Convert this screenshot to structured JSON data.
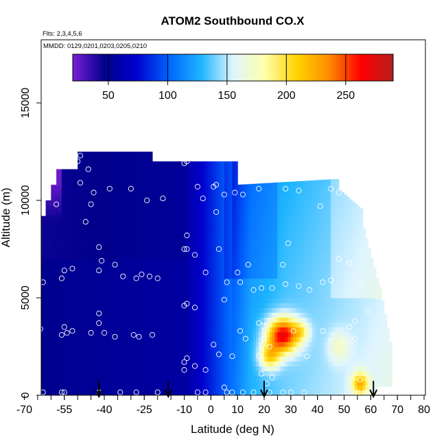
{
  "chart_data": {
    "type": "heatmap",
    "title": "ATOM2 Southbound CO.X",
    "flights_label": "Flts: 2,3,4,5,6",
    "dates_label": "MMDD: 0129,0201,0203,0205,0210",
    "xlabel": "Latitude (deg N)",
    "ylabel": "Altitude (m)",
    "xlim": [
      -70,
      80
    ],
    "ylim": [
      0,
      17800
    ],
    "x_ticks": [
      -70,
      -55,
      -40,
      -25,
      -10,
      0,
      10,
      20,
      30,
      40,
      50,
      60,
      70,
      80
    ],
    "x_tick_labels": [
      "-70",
      "-55",
      "-40",
      "-25",
      "-10",
      "0",
      "10",
      "20",
      "30",
      "40",
      "50",
      "60",
      "70",
      "80"
    ],
    "y_ticks": [
      0,
      5000,
      10000,
      15000
    ],
    "y_tick_labels": [
      "0",
      "5000",
      "10000",
      "15000"
    ],
    "colorbar": {
      "range": [
        20,
        290
      ],
      "ticks": [
        50,
        100,
        150,
        200,
        250
      ],
      "tick_labels": [
        "50",
        "100",
        "150",
        "200",
        "250"
      ],
      "colors": [
        "#7a1fd6",
        "#00008b",
        "#0000cd",
        "#0064ff",
        "#1eb4ff",
        "#dff5ff",
        "#ffffaa",
        "#ffd200",
        "#ff8c00",
        "#ff0000",
        "#b41e1e"
      ]
    },
    "sample_points": [
      [
        -63,
        5800
      ],
      [
        -64,
        3400
      ],
      [
        -63,
        150
      ],
      [
        -58,
        9800
      ],
      [
        -56,
        6000
      ],
      [
        -55,
        6400
      ],
      [
        -52,
        6500
      ],
      [
        -55,
        3500
      ],
      [
        -54,
        3200
      ],
      [
        -56,
        3100
      ],
      [
        -52,
        3300
      ],
      [
        -55,
        150
      ],
      [
        -56,
        150
      ],
      [
        -50,
        12000
      ],
      [
        -49,
        12300
      ],
      [
        -46,
        11600
      ],
      [
        -44,
        10400
      ],
      [
        -45,
        9800
      ],
      [
        -49,
        10900
      ],
      [
        -47,
        8900
      ],
      [
        -42,
        7600
      ],
      [
        -41,
        6900
      ],
      [
        -42,
        6400
      ],
      [
        -36,
        6700
      ],
      [
        -33,
        6100
      ],
      [
        -28,
        6000
      ],
      [
        -26,
        6200
      ],
      [
        -23,
        6100
      ],
      [
        -20,
        6000
      ],
      [
        -42,
        4200
      ],
      [
        -42,
        3700
      ],
      [
        -45,
        3200
      ],
      [
        -40,
        3200
      ],
      [
        -36,
        3000
      ],
      [
        -29,
        3100
      ],
      [
        -27,
        3000
      ],
      [
        -22,
        3100
      ],
      [
        -42,
        150
      ],
      [
        -34,
        150
      ],
      [
        -28,
        150
      ],
      [
        -20,
        150
      ],
      [
        -38,
        10600
      ],
      [
        -30,
        10600
      ],
      [
        -24,
        10000
      ],
      [
        -18,
        10100
      ],
      [
        -9,
        12000
      ],
      [
        -10,
        11900
      ],
      [
        -5,
        10700
      ],
      [
        -3,
        10100
      ],
      [
        1,
        10700
      ],
      [
        2,
        10800
      ],
      [
        5,
        10300
      ],
      [
        9,
        10400
      ],
      [
        12,
        10300
      ],
      [
        -9,
        8200
      ],
      [
        -9,
        7500
      ],
      [
        -10,
        7500
      ],
      [
        -6,
        7200
      ],
      [
        -2,
        6300
      ],
      [
        3,
        7500
      ],
      [
        6,
        5800
      ],
      [
        5,
        4900
      ],
      [
        10,
        6300
      ],
      [
        11,
        5800
      ],
      [
        14,
        6700
      ],
      [
        16,
        5400
      ],
      [
        19,
        5500
      ],
      [
        23,
        5500
      ],
      [
        27,
        6700
      ],
      [
        29,
        7800
      ],
      [
        28,
        5700
      ],
      [
        33,
        5600
      ],
      [
        37,
        5400
      ],
      [
        42,
        5800
      ],
      [
        45,
        5900
      ],
      [
        -10,
        4600
      ],
      [
        -9,
        4700
      ],
      [
        -6,
        4500
      ],
      [
        -9,
        1900
      ],
      [
        -10,
        1700
      ],
      [
        -10,
        1300
      ],
      [
        -6,
        1500
      ],
      [
        -2,
        1300
      ],
      [
        1,
        2600
      ],
      [
        3,
        2100
      ],
      [
        8,
        2000
      ],
      [
        11,
        3300
      ],
      [
        13,
        2900
      ],
      [
        18,
        3700
      ],
      [
        20,
        2900
      ],
      [
        22,
        2500
      ],
      [
        18,
        2000
      ],
      [
        19,
        1100
      ],
      [
        23,
        900
      ],
      [
        21,
        600
      ],
      [
        31,
        3300
      ],
      [
        36,
        2000
      ],
      [
        42,
        3300
      ],
      [
        52,
        3500
      ],
      [
        54,
        3800
      ],
      [
        54,
        2900
      ],
      [
        50,
        2700
      ],
      [
        48,
        7000
      ],
      [
        52,
        6800
      ],
      [
        56,
        5700
      ],
      [
        59,
        4300
      ],
      [
        18,
        10600
      ],
      [
        28,
        10600
      ],
      [
        33,
        10500
      ],
      [
        41,
        9700
      ],
      [
        45,
        10600
      ],
      [
        48,
        10400
      ],
      [
        2,
        9400
      ],
      [
        8,
        150
      ],
      [
        6,
        150
      ],
      [
        12,
        150
      ],
      [
        16,
        150
      ],
      [
        22,
        150
      ],
      [
        27,
        150
      ],
      [
        30,
        150
      ],
      [
        35,
        150
      ],
      [
        -5,
        150
      ],
      [
        -2,
        150
      ],
      [
        5,
        400
      ],
      [
        55,
        150
      ],
      [
        58,
        150
      ],
      [
        56,
        800
      ]
    ],
    "profile_arrows_lat": [
      -42,
      -16,
      20,
      61
    ],
    "legend_placement": "top (horizontal colorbar inside plot)",
    "grid": false
  }
}
